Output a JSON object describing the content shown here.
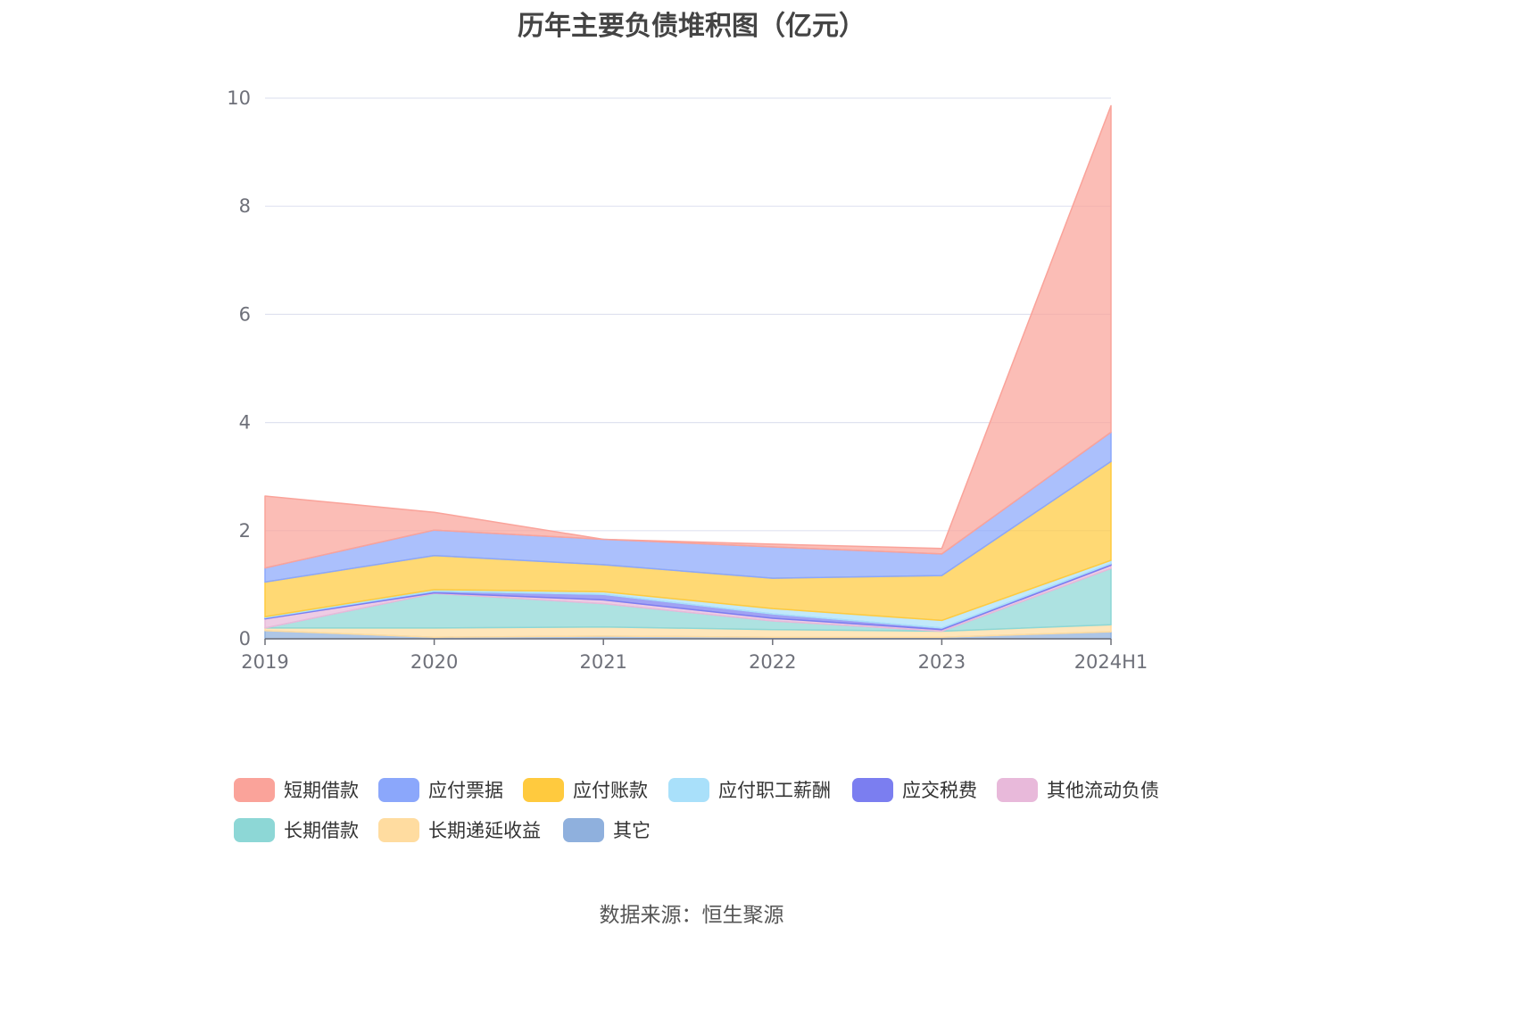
{
  "chart_data": {
    "type": "area",
    "stacked": true,
    "title": "历年主要负债堆积图（亿元）",
    "xlabel": "",
    "ylabel": "",
    "ylim": [
      0,
      10
    ],
    "yticks": [
      0,
      2,
      4,
      6,
      8,
      10
    ],
    "x": [
      "2019",
      "2020",
      "2021",
      "2022",
      "2023",
      "2024H1"
    ],
    "grid": true,
    "legend_position": "bottom",
    "series": [
      {
        "name": "其它",
        "color": "#8fb0dd",
        "values": [
          0.15,
          0.03,
          0.05,
          0.03,
          0.03,
          0.13
        ]
      },
      {
        "name": "长期递延收益",
        "color": "#ffdca0",
        "values": [
          0.05,
          0.17,
          0.17,
          0.14,
          0.11,
          0.13
        ]
      },
      {
        "name": "长期借款",
        "color": "#8dd7d6",
        "values": [
          0.0,
          0.64,
          0.43,
          0.16,
          0.0,
          1.04
        ]
      },
      {
        "name": "其他流动负债",
        "color": "#e8b9da",
        "values": [
          0.17,
          0.01,
          0.07,
          0.05,
          0.03,
          0.06
        ]
      },
      {
        "name": "应交税费",
        "color": "#7b7ef0",
        "values": [
          0.02,
          0.03,
          0.1,
          0.08,
          0.03,
          0.03
        ]
      },
      {
        "name": "应付职工薪酬",
        "color": "#a9e0fa",
        "values": [
          0.02,
          0.03,
          0.05,
          0.1,
          0.14,
          0.06
        ]
      },
      {
        "name": "应付账款",
        "color": "#ffca3e",
        "values": [
          0.64,
          0.63,
          0.5,
          0.56,
          0.83,
          1.83
        ]
      },
      {
        "name": "应付票据",
        "color": "#8ba7fb",
        "values": [
          0.26,
          0.47,
          0.47,
          0.58,
          0.4,
          0.54
        ]
      },
      {
        "name": "短期借款",
        "color": "#faa39a",
        "values": [
          1.33,
          0.33,
          0.0,
          0.05,
          0.1,
          6.04
        ]
      }
    ],
    "legend_order": [
      "短期借款",
      "应付票据",
      "应付账款",
      "应付职工薪酬",
      "应交税费",
      "其他流动负债",
      "长期借款",
      "长期递延收益",
      "其它"
    ]
  },
  "source_text": "数据来源：恒生聚源"
}
